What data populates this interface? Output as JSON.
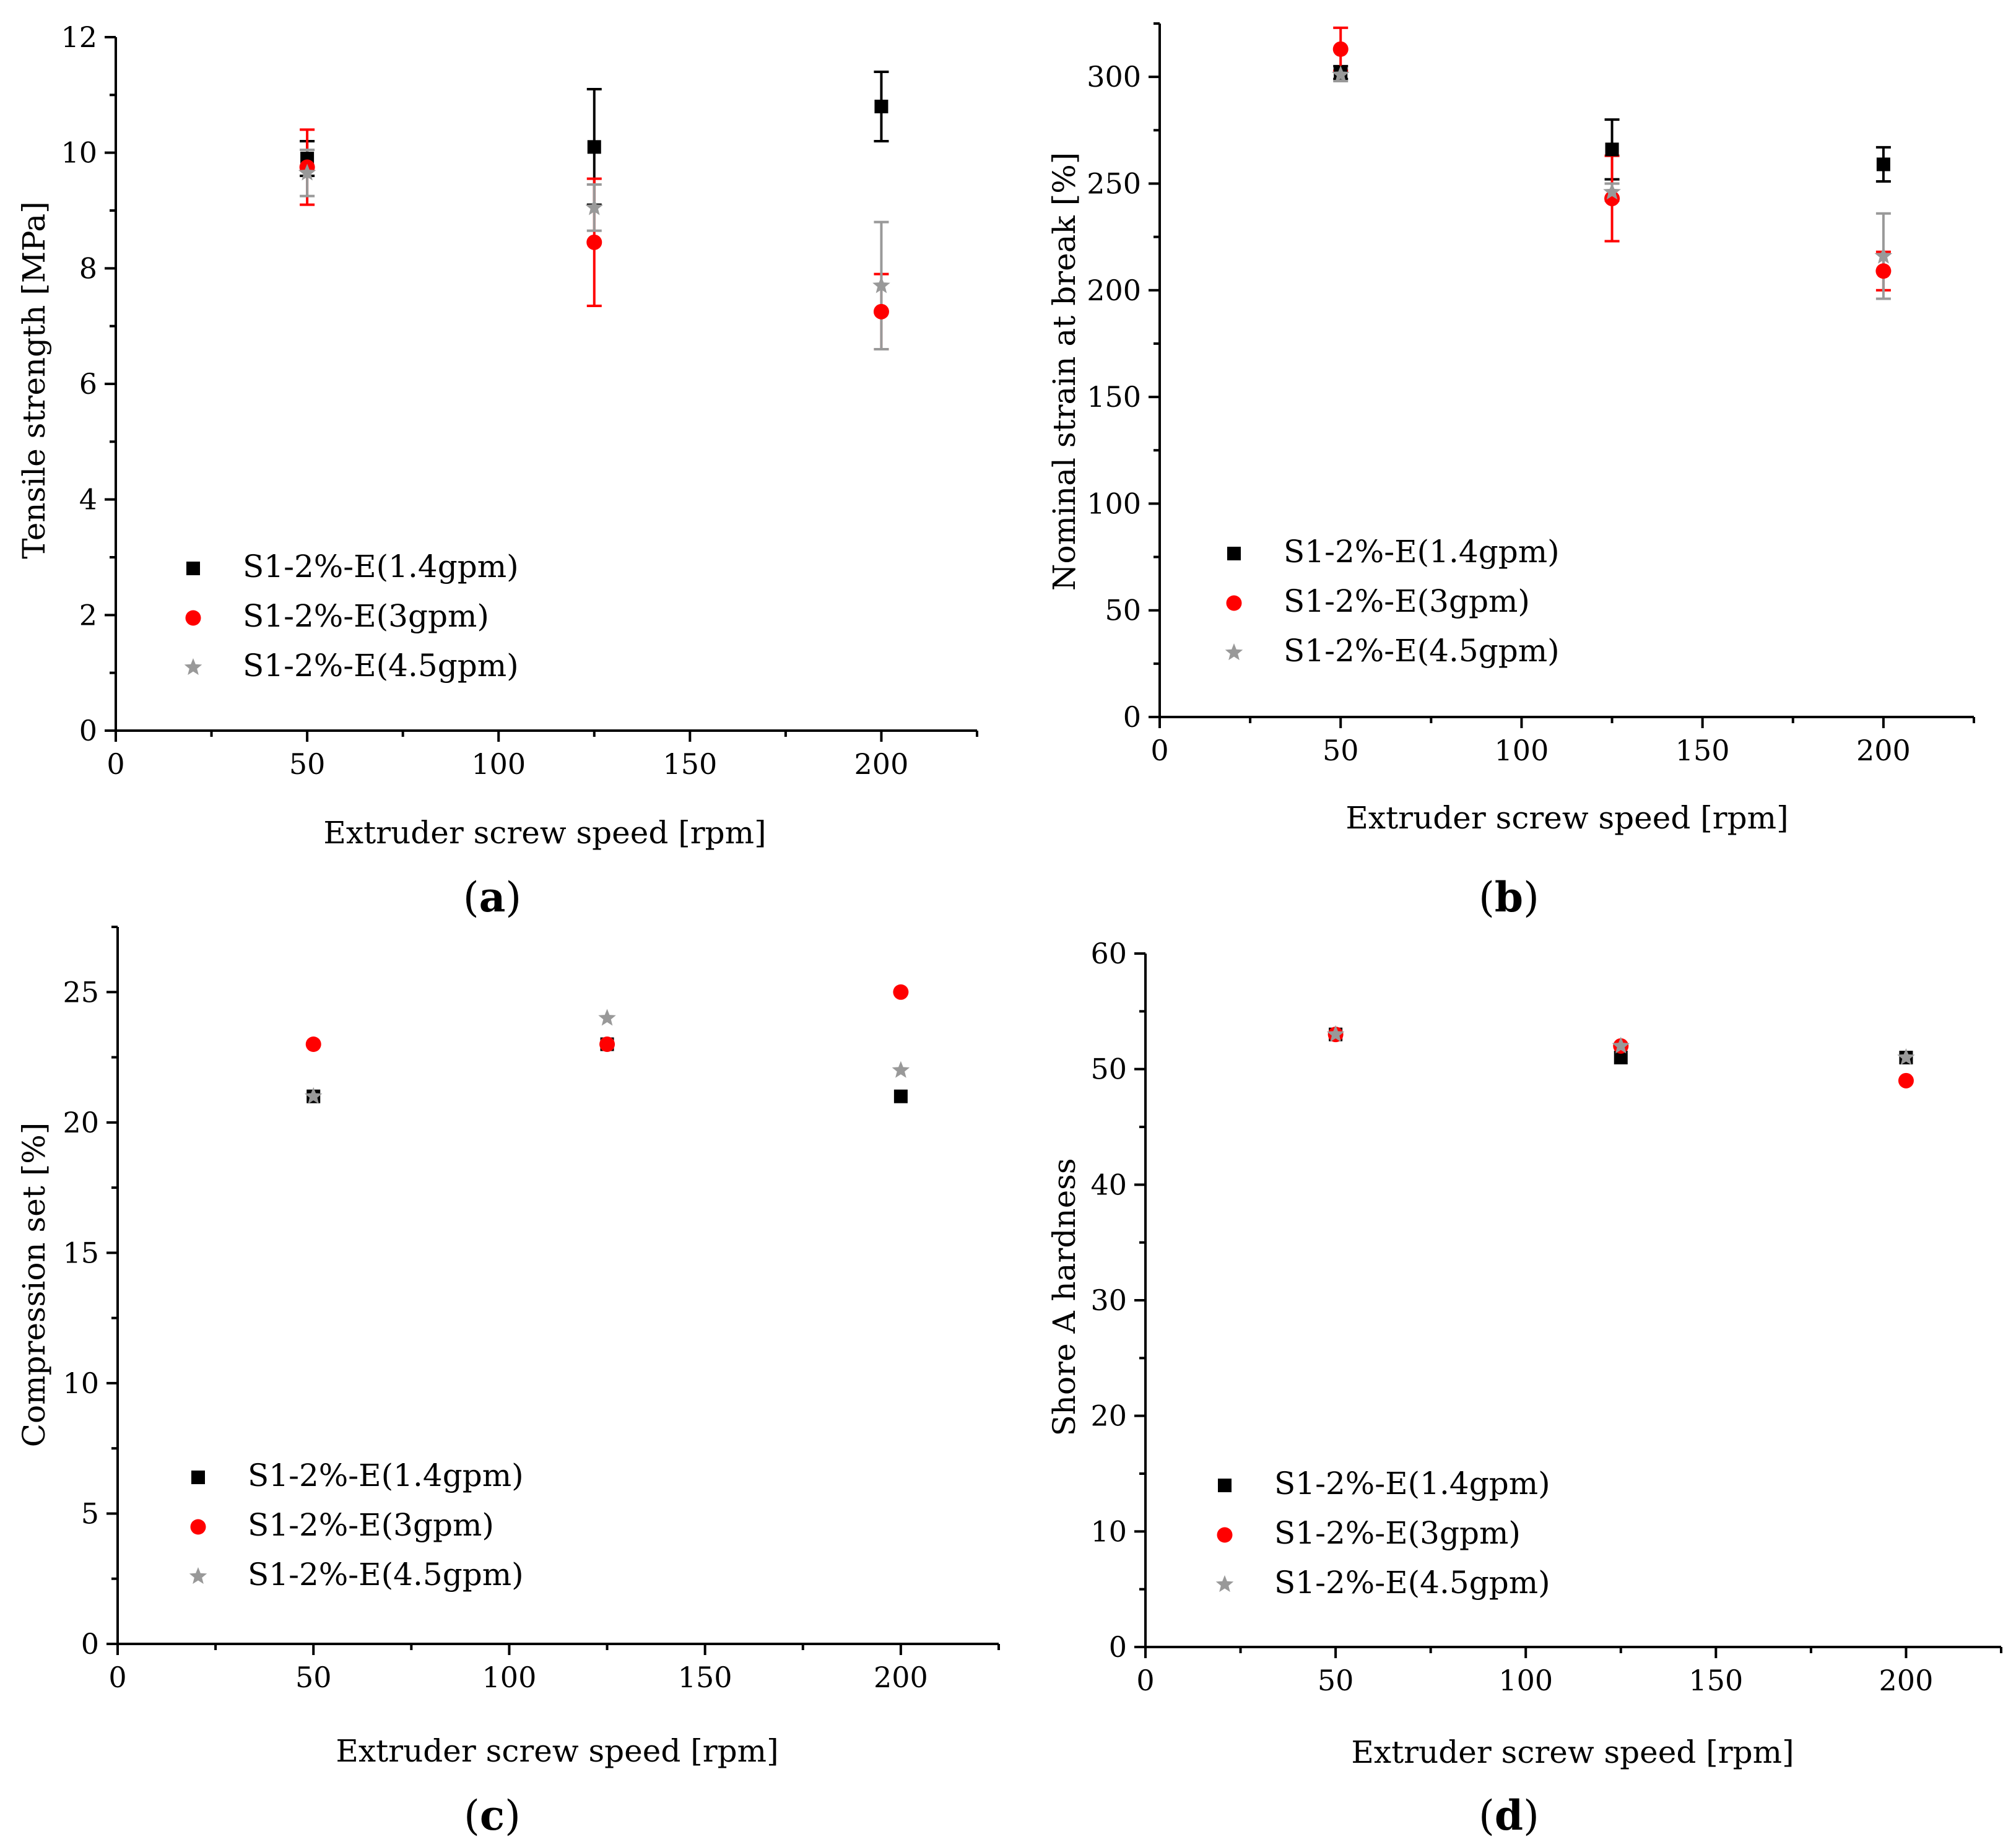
{
  "colors": {
    "s14": "#000000",
    "s3": "#ff0000",
    "s45": "#999999",
    "axis": "#000000"
  },
  "chart_data": [
    {
      "panel": "(a)",
      "panel_letter": "a",
      "type": "scatter",
      "xlabel": "Extruder screw speed [rpm]",
      "ylabel": "Tensile strength [MPa]",
      "xlim": [
        0,
        225
      ],
      "ylim": [
        0,
        12
      ],
      "xticks": [
        0,
        50,
        100,
        150,
        200
      ],
      "yticks": [
        0,
        2,
        4,
        6,
        8,
        10,
        12
      ],
      "legend_position": "lower-left",
      "series": [
        {
          "name": "S1-2%-E(1.4gpm)",
          "marker": "square",
          "color": "#000000",
          "x": [
            50,
            125,
            200
          ],
          "y": [
            9.9,
            10.1,
            10.8
          ],
          "err": [
            0.3,
            1.0,
            0.6
          ]
        },
        {
          "name": "S1-2%-E(3gpm)",
          "marker": "circle",
          "color": "#ff0000",
          "x": [
            50,
            125,
            200
          ],
          "y": [
            9.75,
            8.45,
            7.25
          ],
          "err": [
            0.65,
            1.1,
            0.65
          ]
        },
        {
          "name": "S1-2%-E(4.5gpm)",
          "marker": "star",
          "color": "#999999",
          "x": [
            50,
            125,
            200
          ],
          "y": [
            9.65,
            9.05,
            7.7
          ],
          "err": [
            0.4,
            0.4,
            1.1
          ]
        }
      ]
    },
    {
      "panel": "(b)",
      "panel_letter": "b",
      "type": "scatter",
      "xlabel": "Extruder screw speed [rpm]",
      "ylabel": "Nominal strain at break [%]",
      "xlim": [
        0,
        225
      ],
      "ylim": [
        0,
        325
      ],
      "xticks": [
        0,
        50,
        100,
        150,
        200
      ],
      "yticks": [
        0,
        50,
        100,
        150,
        200,
        250,
        300
      ],
      "legend_position": "lower-left",
      "series": [
        {
          "name": "S1-2%-E(1.4gpm)",
          "marker": "square",
          "color": "#000000",
          "x": [
            50,
            125,
            200
          ],
          "y": [
            302,
            266,
            259
          ],
          "err": [
            3,
            14,
            8
          ]
        },
        {
          "name": "S1-2%-E(3gpm)",
          "marker": "circle",
          "color": "#ff0000",
          "x": [
            50,
            125,
            200
          ],
          "y": [
            313,
            243,
            209
          ],
          "err": [
            10,
            20,
            9
          ]
        },
        {
          "name": "S1-2%-E(4.5gpm)",
          "marker": "star",
          "color": "#999999",
          "x": [
            50,
            125,
            200
          ],
          "y": [
            301,
            246,
            216
          ],
          "err": [
            3,
            4,
            20
          ]
        }
      ]
    },
    {
      "panel": "(c)",
      "panel_letter": "c",
      "type": "scatter",
      "xlabel": "Extruder screw speed [rpm]",
      "ylabel": "Compression set [%]",
      "xlim": [
        0,
        225
      ],
      "ylim": [
        0,
        27.5
      ],
      "xticks": [
        0,
        50,
        100,
        150,
        200
      ],
      "yticks": [
        0,
        5,
        10,
        15,
        20,
        25
      ],
      "legend_position": "lower-left",
      "series": [
        {
          "name": "S1-2%-E(1.4gpm)",
          "marker": "square",
          "color": "#000000",
          "x": [
            50,
            125,
            200
          ],
          "y": [
            21,
            23,
            21
          ]
        },
        {
          "name": "S1-2%-E(3gpm)",
          "marker": "circle",
          "color": "#ff0000",
          "x": [
            50,
            125,
            200
          ],
          "y": [
            23,
            23,
            25
          ]
        },
        {
          "name": "S1-2%-E(4.5gpm)",
          "marker": "star",
          "color": "#999999",
          "x": [
            50,
            125,
            200
          ],
          "y": [
            21,
            24,
            22
          ]
        }
      ]
    },
    {
      "panel": "(d)",
      "panel_letter": "d",
      "type": "scatter",
      "xlabel": "Extruder screw speed [rpm]",
      "ylabel": "Shore A hardness",
      "xlim": [
        0,
        225
      ],
      "ylim": [
        0,
        60
      ],
      "xticks": [
        0,
        50,
        100,
        150,
        200
      ],
      "yticks": [
        0,
        10,
        20,
        30,
        40,
        50,
        60
      ],
      "legend_position": "lower-left",
      "series": [
        {
          "name": "S1-2%-E(1.4gpm)",
          "marker": "square",
          "color": "#000000",
          "x": [
            50,
            125,
            200
          ],
          "y": [
            53,
            51,
            51
          ]
        },
        {
          "name": "S1-2%-E(3gpm)",
          "marker": "circle",
          "color": "#ff0000",
          "x": [
            50,
            125,
            200
          ],
          "y": [
            53,
            52,
            49
          ]
        },
        {
          "name": "S1-2%-E(4.5gpm)",
          "marker": "star",
          "color": "#999999",
          "x": [
            50,
            125,
            200
          ],
          "y": [
            53,
            52,
            51
          ]
        }
      ]
    }
  ]
}
